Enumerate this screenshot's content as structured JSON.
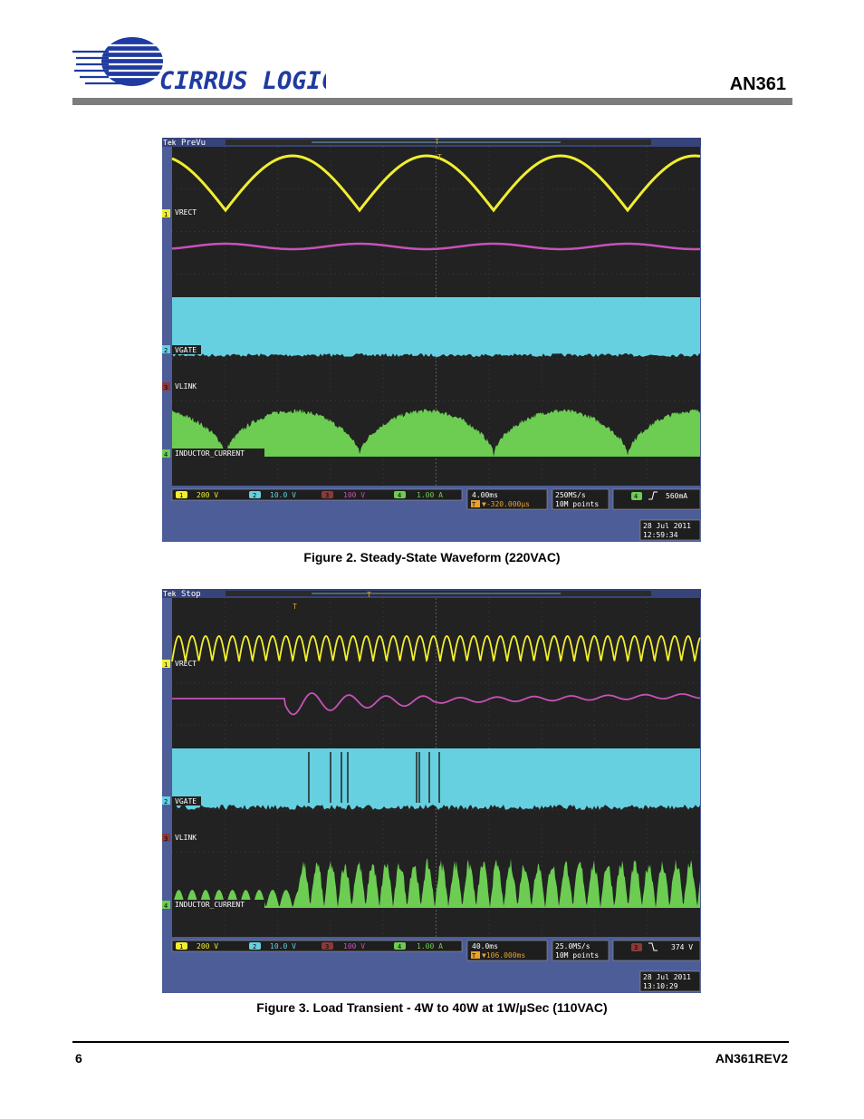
{
  "header": {
    "brand": "CIRRUS LOGIC",
    "registered": "®",
    "doc_id": "AN361"
  },
  "colors": {
    "ch1": "#f2ee2e",
    "ch2": "#66cfe0",
    "ch3": "#c752b8",
    "ch4": "#6ccd52",
    "screen": "#222222",
    "frame": "#4d5d98",
    "rule": "#7d7d7d"
  },
  "figures": [
    {
      "status": "PreVu",
      "labels": {
        "ch1": "VRECT",
        "ch2": "VGATE",
        "ch3": "VLINK",
        "ch4": "INDUCTOR_CURRENT"
      },
      "scales": {
        "ch1": "200 V",
        "ch2": "10.0 V",
        "ch3": "100 V",
        "ch4": "1.00 A"
      },
      "timebase": "4.00ms",
      "trigger_pos": "▼-320.000µs",
      "sample_rate": "250MS/s",
      "points": "10M points",
      "trigger_channel": "4",
      "trigger_slope": "rising-edge-icon",
      "trigger_level": "560mA",
      "date": "28 Jul  2011",
      "time": "12:59:34",
      "caption": "Figure 2.  Steady-State Waveform (220VAC)"
    },
    {
      "status": "Stop",
      "labels": {
        "ch1": "VRECT",
        "ch2": "VGATE",
        "ch3": "VLINK",
        "ch4": "INDUCTOR_CURRENT"
      },
      "scales": {
        "ch1": "200 V",
        "ch2": "10.0 V",
        "ch3": "100 V",
        "ch4": "1.00 A"
      },
      "timebase": "40.0ms",
      "trigger_pos": "▼106.000ms",
      "sample_rate": "25.0MS/s",
      "points": "10M points",
      "trigger_channel": "3",
      "trigger_slope": "falling-edge-icon",
      "trigger_level": "374 V",
      "date": "28 Jul  2011",
      "time": "13:10:29",
      "caption": "Figure 3.  Load Transient - 4W to 40W at 1W/µSec (110VAC)"
    }
  ],
  "footer": {
    "page_number": "6",
    "doc_rev": "AN361REV2"
  }
}
